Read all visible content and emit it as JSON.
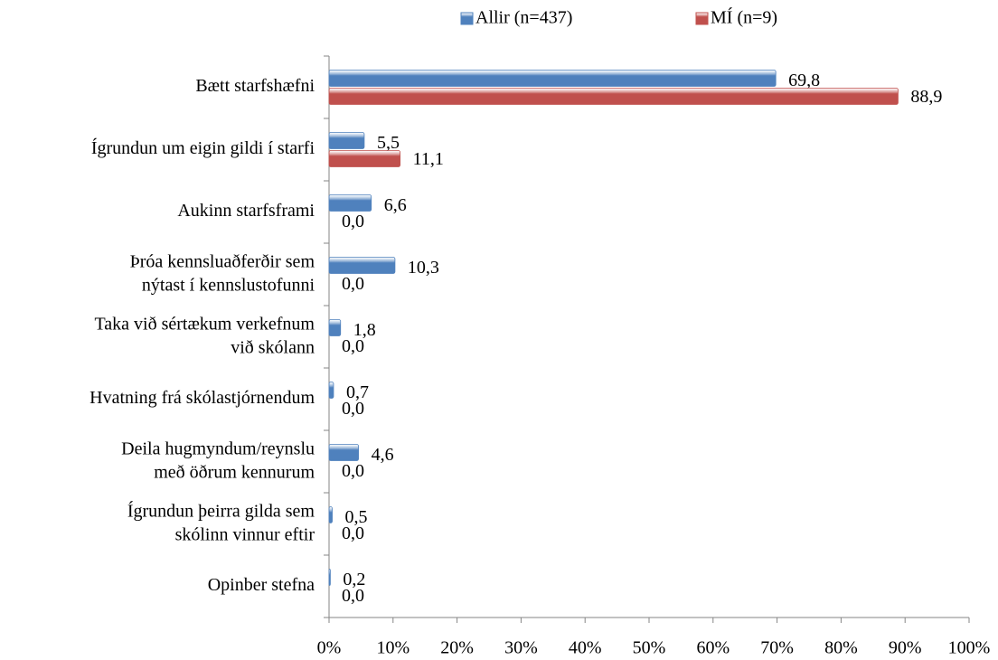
{
  "chart_data": {
    "type": "bar",
    "orientation": "horizontal",
    "categories": [
      "Bætt starfshæfni",
      "Ígrundun um eigin  gildi  í starfi",
      "Aukinn starfsframi",
      "Þróa kennsluaðferðir sem\nnýtast í kennslustofunni",
      "Taka við sértækum verkefnum\nvið skólann",
      "Hvatning frá skólastjórnendum",
      "Deila hugmyndum/reynslu\nmeð öðrum kennurum",
      "Ígrundun þeirra gilda sem\nskólinn  vinnur eftir",
      "Opinber stefna"
    ],
    "series": [
      {
        "name": "Allir  (n=437)",
        "color": "#4f81bd",
        "values": [
          69.8,
          5.5,
          6.6,
          10.3,
          1.8,
          0.7,
          4.6,
          0.5,
          0.2
        ],
        "value_labels": [
          "69,8",
          "5,5",
          "6,6",
          "10,3",
          "1,8",
          "0,7",
          "4,6",
          "0,5",
          "0,2"
        ]
      },
      {
        "name": "MÍ (n=9)",
        "color": "#c0504d",
        "values": [
          88.9,
          11.1,
          0.0,
          0.0,
          0.0,
          0.0,
          0.0,
          0.0,
          0.0
        ],
        "value_labels": [
          "88,9",
          "11,1",
          "0,0",
          "0,0",
          "0,0",
          "0,0",
          "0,0",
          "0,0",
          "0,0"
        ]
      }
    ],
    "xlim": [
      0,
      100
    ],
    "xticks": [
      {
        "value": 0,
        "label": "0%"
      },
      {
        "value": 10,
        "label": "10%"
      },
      {
        "value": 20,
        "label": "20%"
      },
      {
        "value": 30,
        "label": "30%"
      },
      {
        "value": 40,
        "label": "40%"
      },
      {
        "value": 50,
        "label": "50%"
      },
      {
        "value": 60,
        "label": "60%"
      },
      {
        "value": 70,
        "label": "70%"
      },
      {
        "value": 80,
        "label": "80%"
      },
      {
        "value": 90,
        "label": "90%"
      },
      {
        "value": 100,
        "label": "100%"
      }
    ],
    "legend": "top"
  }
}
